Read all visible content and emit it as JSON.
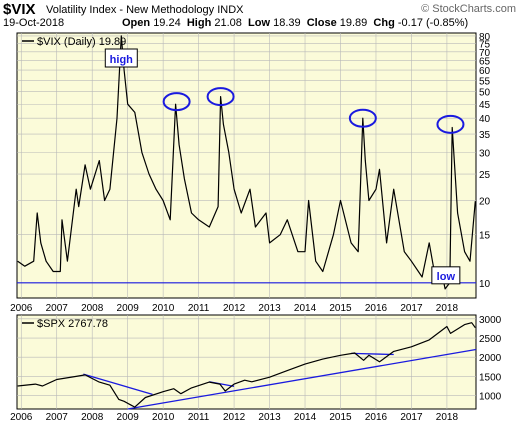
{
  "header": {
    "symbol": "$VIX",
    "name": "Volatility Index - New Methodology  INDX",
    "date": "19-Oct-2018",
    "open_label": "Open",
    "open": "19.24",
    "high_label": "High",
    "high": "21.08",
    "low_label": "Low",
    "low": "18.39",
    "close_label": "Close",
    "close": "19.89",
    "chg_label": "Chg",
    "chg": "-0.17 (-0.85%)",
    "watermark": "© StockCharts.com"
  },
  "colors": {
    "panel_bg": "#fbfbd9",
    "price_line": "#000000",
    "annotation": "#1a1adf",
    "grid": "#b9b9b9"
  },
  "chart_data": [
    {
      "type": "line",
      "legend": "$VIX (Daily) 19.89",
      "y_scale": "log",
      "ylim": [
        8.8,
        82
      ],
      "yticks": [
        10,
        15,
        20,
        25,
        30,
        35,
        40,
        45,
        50,
        55,
        60,
        65,
        70,
        75,
        80
      ],
      "xlim": [
        2005.88,
        2018.82
      ],
      "xticks": [
        "2006",
        "2007",
        "2008",
        "2009",
        "2010",
        "2011",
        "2012",
        "2013",
        "2014",
        "2015",
        "2016",
        "2017",
        "2018"
      ],
      "grid": true,
      "x": [
        2005.9,
        2006.1,
        2006.35,
        2006.45,
        2006.55,
        2006.7,
        2006.9,
        2007.1,
        2007.15,
        2007.3,
        2007.55,
        2007.62,
        2007.8,
        2007.95,
        2008.2,
        2008.35,
        2008.5,
        2008.7,
        2008.82,
        2008.9,
        2009.0,
        2009.2,
        2009.4,
        2009.6,
        2009.8,
        2010.0,
        2010.2,
        2010.35,
        2010.45,
        2010.6,
        2010.8,
        2011.0,
        2011.3,
        2011.55,
        2011.62,
        2011.7,
        2011.85,
        2012.0,
        2012.2,
        2012.45,
        2012.6,
        2012.9,
        2013.0,
        2013.3,
        2013.5,
        2013.8,
        2014.0,
        2014.1,
        2014.3,
        2014.5,
        2014.8,
        2015.0,
        2015.3,
        2015.5,
        2015.63,
        2015.7,
        2015.8,
        2016.0,
        2016.1,
        2016.3,
        2016.5,
        2016.8,
        2017.0,
        2017.3,
        2017.5,
        2017.7,
        2017.85,
        2017.95,
        2018.08,
        2018.15,
        2018.3,
        2018.5,
        2018.65,
        2018.8
      ],
      "y": [
        12,
        11.5,
        12,
        18,
        14,
        12,
        11,
        11,
        17,
        12,
        22,
        19,
        27,
        22,
        28,
        20,
        22,
        40,
        80,
        60,
        45,
        42,
        30,
        25,
        22,
        20,
        17,
        45,
        32,
        24,
        18,
        17,
        16,
        19,
        48,
        38,
        30,
        22,
        18,
        22,
        16,
        18,
        14,
        15,
        17,
        13,
        13,
        20,
        12,
        11,
        15,
        20,
        14,
        13,
        40,
        28,
        20,
        22,
        26,
        14,
        22,
        13,
        12,
        10.5,
        14,
        10,
        11,
        9.5,
        10,
        37,
        18,
        13,
        12,
        19.89
      ],
      "annotations": {
        "high_label": "high",
        "low_label": "low",
        "circled_peaks": [
          [
            2010.38,
            46
          ],
          [
            2011.62,
            48
          ],
          [
            2015.63,
            40
          ],
          [
            2018.1,
            38
          ]
        ],
        "support_level": 10
      }
    },
    {
      "type": "line",
      "legend": "$SPX 2767.78",
      "ylim": [
        650,
        3100
      ],
      "yticks": [
        1000,
        1500,
        2000,
        2500,
        3000
      ],
      "xlim": [
        2005.88,
        2018.82
      ],
      "xticks": [
        "2006",
        "2007",
        "2008",
        "2009",
        "2010",
        "2011",
        "2012",
        "2013",
        "2014",
        "2015",
        "2016",
        "2017",
        "2018"
      ],
      "grid": true,
      "x": [
        2005.9,
        2006.4,
        2006.6,
        2007.0,
        2007.55,
        2007.8,
        2008.2,
        2008.5,
        2008.75,
        2008.9,
        2009.1,
        2009.2,
        2009.5,
        2010.0,
        2010.3,
        2010.5,
        2010.8,
        2011.3,
        2011.6,
        2011.75,
        2012.0,
        2012.3,
        2012.5,
        2013.0,
        2013.5,
        2014.0,
        2014.5,
        2015.0,
        2015.4,
        2015.65,
        2015.8,
        2016.1,
        2016.5,
        2017.0,
        2017.5,
        2018.0,
        2018.1,
        2018.5,
        2018.7,
        2018.8
      ],
      "y": [
        1250,
        1300,
        1250,
        1420,
        1500,
        1540,
        1350,
        1270,
        900,
        850,
        750,
        700,
        950,
        1100,
        1180,
        1050,
        1200,
        1350,
        1300,
        1120,
        1300,
        1400,
        1360,
        1480,
        1650,
        1820,
        1950,
        2050,
        2110,
        1920,
        2050,
        1880,
        2150,
        2270,
        2450,
        2800,
        2620,
        2850,
        2900,
        2767.78
      ],
      "trendlines": [
        [
          [
            2007.75,
            1560
          ],
          [
            2009.7,
            1030
          ]
        ],
        [
          [
            2011.3,
            1360
          ],
          [
            2012.0,
            1240
          ]
        ],
        [
          [
            2015.3,
            2100
          ],
          [
            2016.5,
            2070
          ]
        ],
        [
          [
            2009.0,
            650
          ],
          [
            2018.82,
            2200
          ]
        ]
      ]
    }
  ]
}
